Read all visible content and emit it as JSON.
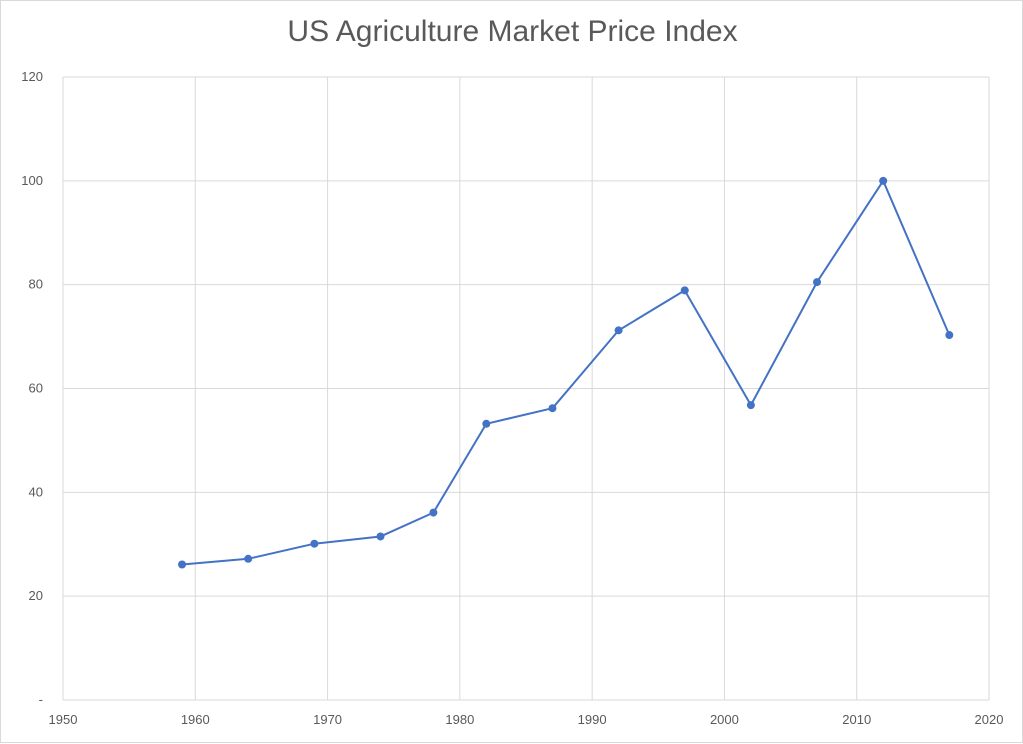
{
  "chart_data": {
    "type": "line",
    "title": "US Agriculture Market Price Index",
    "xlabel": "",
    "ylabel": "",
    "xlim": [
      1950,
      2020
    ],
    "ylim": [
      0,
      120
    ],
    "x_ticks": [
      1950,
      1960,
      1970,
      1980,
      1990,
      2000,
      2010,
      2020
    ],
    "y_ticks": [
      0,
      20,
      40,
      60,
      80,
      100,
      120
    ],
    "y_tick_labels": [
      "-",
      "20",
      "40",
      "60",
      "80",
      "100",
      "120"
    ],
    "grid": true,
    "legend": "none",
    "series": [
      {
        "x": [
          1959,
          1964,
          1969,
          1974,
          1978,
          1982,
          1987,
          1992,
          1997,
          2002,
          2007,
          2012,
          2017
        ],
        "values": [
          26.1,
          27.2,
          30.1,
          31.5,
          36.1,
          53.2,
          56.2,
          71.2,
          78.9,
          56.8,
          80.5,
          100,
          70.3
        ],
        "color": "#4472C4"
      }
    ]
  }
}
